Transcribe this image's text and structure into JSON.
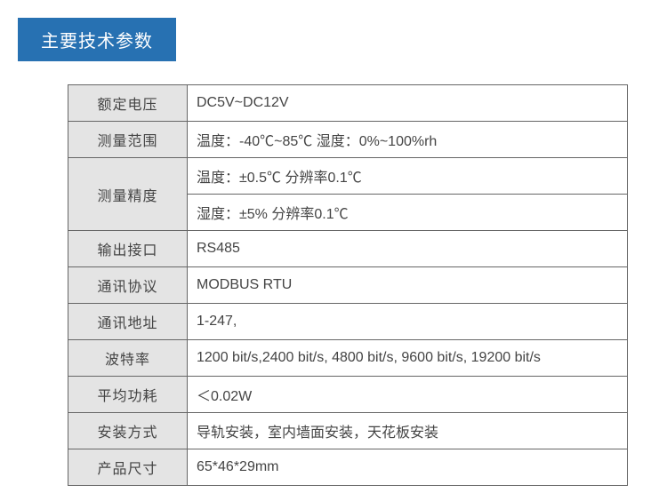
{
  "title": "主要技术参数",
  "colors": {
    "banner_bg": "#2771b2",
    "banner_text": "#ffffff",
    "table_border": "#666666",
    "label_bg": "#e4e4e4",
    "value_bg": "#ffffff",
    "text_color": "#444444"
  },
  "rows": [
    {
      "label": "额定电压",
      "value": "DC5V~DC12V",
      "rowspan": 1
    },
    {
      "label": "测量范围",
      "value": "温度：-40℃~85℃ 湿度：0%~100%rh",
      "rowspan": 1
    },
    {
      "label": "测量精度",
      "value": "温度：±0.5℃ 分辨率0.1℃",
      "rowspan": 2,
      "value2": "湿度：±5% 分辨率0.1℃"
    },
    {
      "label": "输出接口",
      "value": "RS485",
      "rowspan": 1
    },
    {
      "label": "通讯协议",
      "value": "MODBUS RTU",
      "rowspan": 1
    },
    {
      "label": "通讯地址",
      "value": "1-247,",
      "rowspan": 1
    },
    {
      "label": "波特率",
      "value": "1200 bit/s,2400 bit/s, 4800 bit/s, 9600 bit/s, 19200 bit/s",
      "rowspan": 1
    },
    {
      "label": "平均功耗",
      "value": "＜0.02W",
      "rowspan": 1
    },
    {
      "label": "安装方式",
      "value": "导轨安装，室内墙面安装，天花板安装",
      "rowspan": 1
    },
    {
      "label": "产品尺寸",
      "value": "65*46*29mm",
      "rowspan": 1
    }
  ]
}
